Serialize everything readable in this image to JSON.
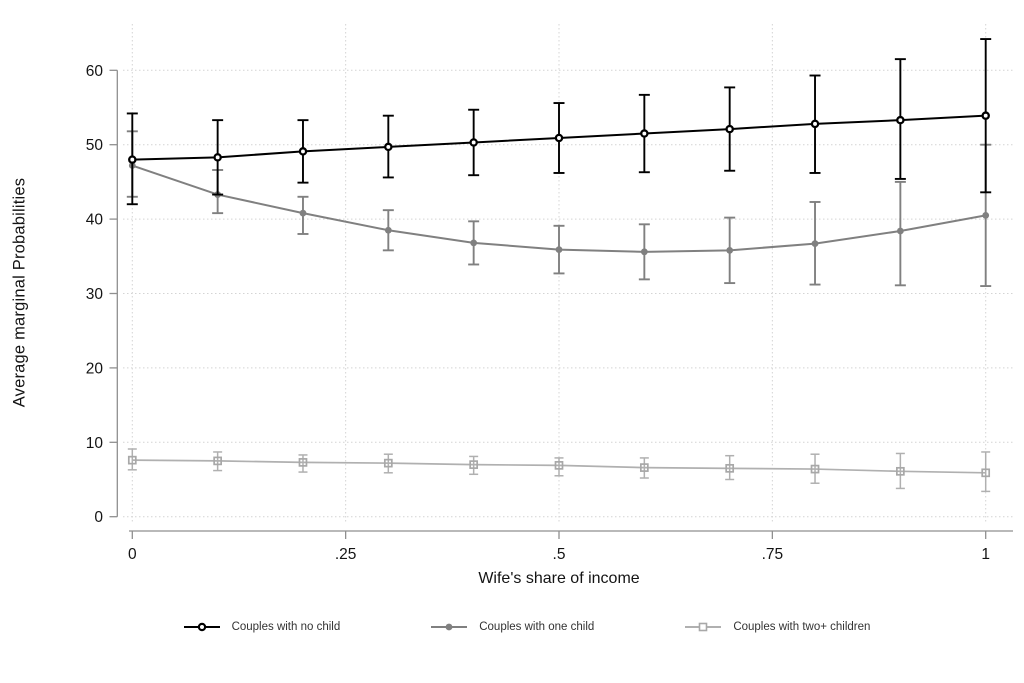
{
  "figure": {
    "title": "",
    "background_color": "#ffffff"
  },
  "chart_data": {
    "type": "line",
    "title": "",
    "xlabel": "Wife's share of income",
    "ylabel": "Average marginal Probabilities",
    "x": [
      0,
      0.1,
      0.2,
      0.3,
      0.4,
      0.5,
      0.6,
      0.7,
      0.8,
      0.9,
      1.0
    ],
    "x_tick_values": [
      0,
      0.25,
      0.5,
      0.75,
      1
    ],
    "x_tick_labels": [
      "0",
      ".25",
      ".5",
      ".75",
      "1"
    ],
    "y_ticks": [
      0,
      10,
      20,
      30,
      40,
      50,
      60
    ],
    "y_tick_labels": [
      "0",
      "10",
      "20",
      "30",
      "40",
      "50",
      "60"
    ],
    "xlim": [
      0,
      1
    ],
    "ylim": [
      0,
      66
    ],
    "grid": "dotted",
    "legend_position": "bottom",
    "error_bars": true,
    "series": [
      {
        "name": "Couples with no child",
        "color": "#000000",
        "marker": "open-circle",
        "values": [
          48.0,
          48.3,
          49.1,
          49.7,
          50.3,
          50.9,
          51.5,
          52.1,
          52.8,
          53.3,
          53.9
        ],
        "ci_low": [
          42.0,
          43.3,
          44.9,
          45.6,
          45.9,
          46.2,
          46.3,
          46.5,
          46.2,
          45.4,
          43.6
        ],
        "ci_high": [
          54.2,
          53.3,
          53.3,
          53.9,
          54.7,
          55.6,
          56.7,
          57.7,
          59.3,
          61.5,
          64.2
        ]
      },
      {
        "name": "Couples with one child",
        "color": "#808080",
        "marker": "filled-circle",
        "values": [
          47.2,
          43.3,
          40.8,
          38.5,
          36.8,
          35.9,
          35.6,
          35.8,
          36.7,
          38.4,
          40.5
        ],
        "ci_low": [
          43.0,
          40.8,
          38.0,
          35.8,
          33.9,
          32.7,
          31.9,
          31.4,
          31.2,
          31.1,
          31.0
        ],
        "ci_high": [
          51.8,
          46.6,
          43.0,
          41.2,
          39.7,
          39.1,
          39.3,
          40.2,
          42.3,
          45.0,
          50.0
        ]
      },
      {
        "name": "Couples with two+ children",
        "color": "#b0b0b0",
        "marker": "open-square",
        "values": [
          7.6,
          7.5,
          7.3,
          7.2,
          7.0,
          6.9,
          6.6,
          6.5,
          6.4,
          6.1,
          5.9
        ],
        "ci_low": [
          6.3,
          6.2,
          6.0,
          5.9,
          5.7,
          5.5,
          5.2,
          5.0,
          4.5,
          3.8,
          3.4
        ],
        "ci_high": [
          9.1,
          8.7,
          8.3,
          8.4,
          8.1,
          7.9,
          7.9,
          8.2,
          8.4,
          8.5,
          8.7
        ]
      }
    ],
    "colors": {
      "grid": "#d4d4d4",
      "axis": "#8f8f8f",
      "tick_label": "#141414",
      "axis_title": "#141414",
      "legend_text": "#333333",
      "background": "#ffffff"
    }
  }
}
